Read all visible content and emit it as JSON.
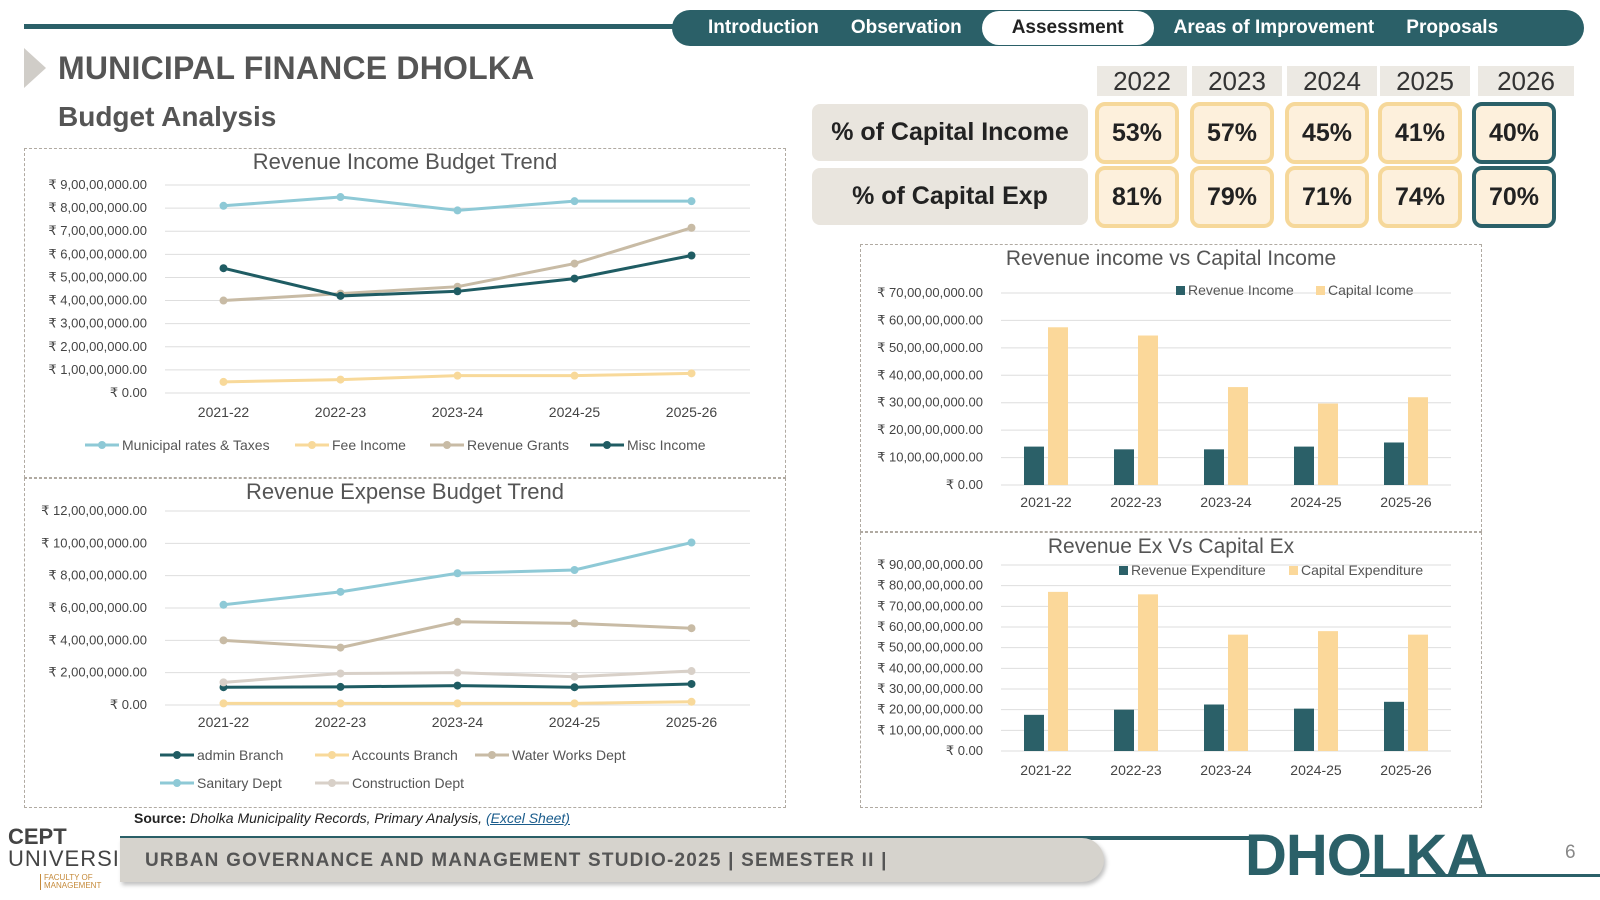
{
  "nav": {
    "tabs": [
      "Introduction",
      "Observation",
      "Assessment",
      "Areas of Improvement",
      "Proposals"
    ],
    "active": "Assessment"
  },
  "header": {
    "title": "MUNICIPAL FINANCE DHOLKA",
    "subtitle": "Budget Analysis"
  },
  "summary": {
    "years": [
      "2022",
      "2023",
      "2024",
      "2025",
      "2026"
    ],
    "rows": [
      {
        "label": "% of Capital Income",
        "values": [
          "53%",
          "57%",
          "45%",
          "41%",
          "40%"
        ]
      },
      {
        "label": "% of Capital Exp",
        "values": [
          "81%",
          "79%",
          "71%",
          "74%",
          "70%"
        ]
      }
    ]
  },
  "chart_data": [
    {
      "id": "rev-income",
      "type": "line",
      "title": "Revenue Income Budget Trend",
      "categories": [
        "2021-22",
        "2022-23",
        "2023-24",
        "2024-25",
        "2025-26"
      ],
      "ylim": [
        0,
        90000000
      ],
      "yticks": [
        "₹ 0.00",
        "₹ 1,00,00,000.00",
        "₹ 2,00,00,000.00",
        "₹ 3,00,00,000.00",
        "₹ 4,00,00,000.00",
        "₹ 5,00,00,000.00",
        "₹ 6,00,00,000.00",
        "₹ 7,00,00,000.00",
        "₹ 8,00,00,000.00",
        "₹ 9,00,00,000.00"
      ],
      "legend": "bottom",
      "series": [
        {
          "name": "Municipal rates & Taxes",
          "color": "#8ec9d6",
          "values": [
            81000000,
            84800000,
            79000000,
            83000000,
            83000000
          ]
        },
        {
          "name": "Fee Income",
          "color": "#f8d99a",
          "values": [
            4800000,
            5800000,
            7500000,
            7500000,
            8500000
          ]
        },
        {
          "name": "Revenue Grants",
          "color": "#c8bba5",
          "values": [
            40000000,
            43000000,
            46000000,
            56000000,
            71500000
          ]
        },
        {
          "name": "Misc Income",
          "color": "#1f5c63",
          "values": [
            54000000,
            42000000,
            44000000,
            49500000,
            59500000
          ]
        }
      ]
    },
    {
      "id": "rev-expense",
      "type": "line",
      "title": "Revenue Expense Budget Trend",
      "categories": [
        "2021-22",
        "2022-23",
        "2023-24",
        "2024-25",
        "2025-26"
      ],
      "ylim": [
        0,
        120000000
      ],
      "yticks": [
        "₹ 0.00",
        "₹ 2,00,00,000.00",
        "₹ 4,00,00,000.00",
        "₹ 6,00,00,000.00",
        "₹ 8,00,00,000.00",
        "₹ 10,00,00,000.00",
        "₹ 12,00,00,000.00"
      ],
      "legend": "bottom",
      "series": [
        {
          "name": "admin Branch",
          "color": "#1f5c63",
          "values": [
            11000000,
            11200000,
            12000000,
            11000000,
            13000000
          ]
        },
        {
          "name": "Accounts Branch",
          "color": "#f8d99a",
          "values": [
            1000000,
            1000000,
            1000000,
            1000000,
            2000000
          ]
        },
        {
          "name": "Water Works Dept",
          "color": "#c8bba5",
          "values": [
            40000000,
            35500000,
            51500000,
            50500000,
            47500000
          ]
        },
        {
          "name": "Sanitary Dept",
          "color": "#8ec9d6",
          "values": [
            62000000,
            70000000,
            81500000,
            83500000,
            100500000
          ]
        },
        {
          "name": "Construction Dept",
          "color": "#d8d0c8",
          "values": [
            14000000,
            19500000,
            20000000,
            17500000,
            21000000
          ]
        }
      ]
    },
    {
      "id": "rev-vs-cap-income",
      "type": "bar",
      "title": "Revenue income vs Capital Income",
      "categories": [
        "2021-22",
        "2022-23",
        "2023-24",
        "2024-25",
        "2025-26"
      ],
      "ylim": [
        0,
        700000000
      ],
      "yticks": [
        "₹ 0.00",
        "₹ 10,00,00,000.00",
        "₹ 20,00,00,000.00",
        "₹ 30,00,00,000.00",
        "₹ 40,00,00,000.00",
        "₹ 50,00,00,000.00",
        "₹ 60,00,00,000.00",
        "₹ 70,00,00,000.00"
      ],
      "legend": "top-right",
      "series": [
        {
          "name": "Revenue Income",
          "color": "#2b6068",
          "values": [
            140000000,
            130000000,
            130000000,
            140000000,
            155000000
          ]
        },
        {
          "name": "Capital Icome",
          "color": "#fbd89a",
          "values": [
            575000000,
            545000000,
            357000000,
            297000000,
            320000000
          ]
        }
      ]
    },
    {
      "id": "rev-vs-cap-exp",
      "type": "bar",
      "title": "Revenue Ex Vs Capital Ex",
      "categories": [
        "2021-22",
        "2022-23",
        "2023-24",
        "2024-25",
        "2025-26"
      ],
      "ylim": [
        0,
        900000000
      ],
      "yticks": [
        "₹ 0.00",
        "₹ 10,00,00,000.00",
        "₹ 20,00,00,000.00",
        "₹ 30,00,00,000.00",
        "₹ 40,00,00,000.00",
        "₹ 50,00,00,000.00",
        "₹ 60,00,00,000.00",
        "₹ 70,00,00,000.00",
        "₹ 80,00,00,000.00",
        "₹ 90,00,00,000.00"
      ],
      "legend": "top-right",
      "series": [
        {
          "name": "Revenue Expenditure",
          "color": "#2b6068",
          "values": [
            175000000,
            200000000,
            225000000,
            205000000,
            238000000
          ]
        },
        {
          "name": "Capital Expenditure",
          "color": "#fbd89a",
          "values": [
            770000000,
            758000000,
            563000000,
            580000000,
            563000000
          ]
        }
      ]
    }
  ],
  "source": {
    "label": "Source:",
    "text": "Dholka Municipality Records, Primary Analysis,",
    "link": "(Excel Sheet)"
  },
  "footer": {
    "studio": "URBAN GOVERNANCE AND MANAGEMENT STUDIO-2025 | SEMESTER II |",
    "brand": "DHOLKA",
    "page": "6",
    "logo_line1": "CEPT",
    "logo_line2": "UNIVERSITY",
    "logo_line3": "FACULTY OF MANAGEMENT"
  }
}
